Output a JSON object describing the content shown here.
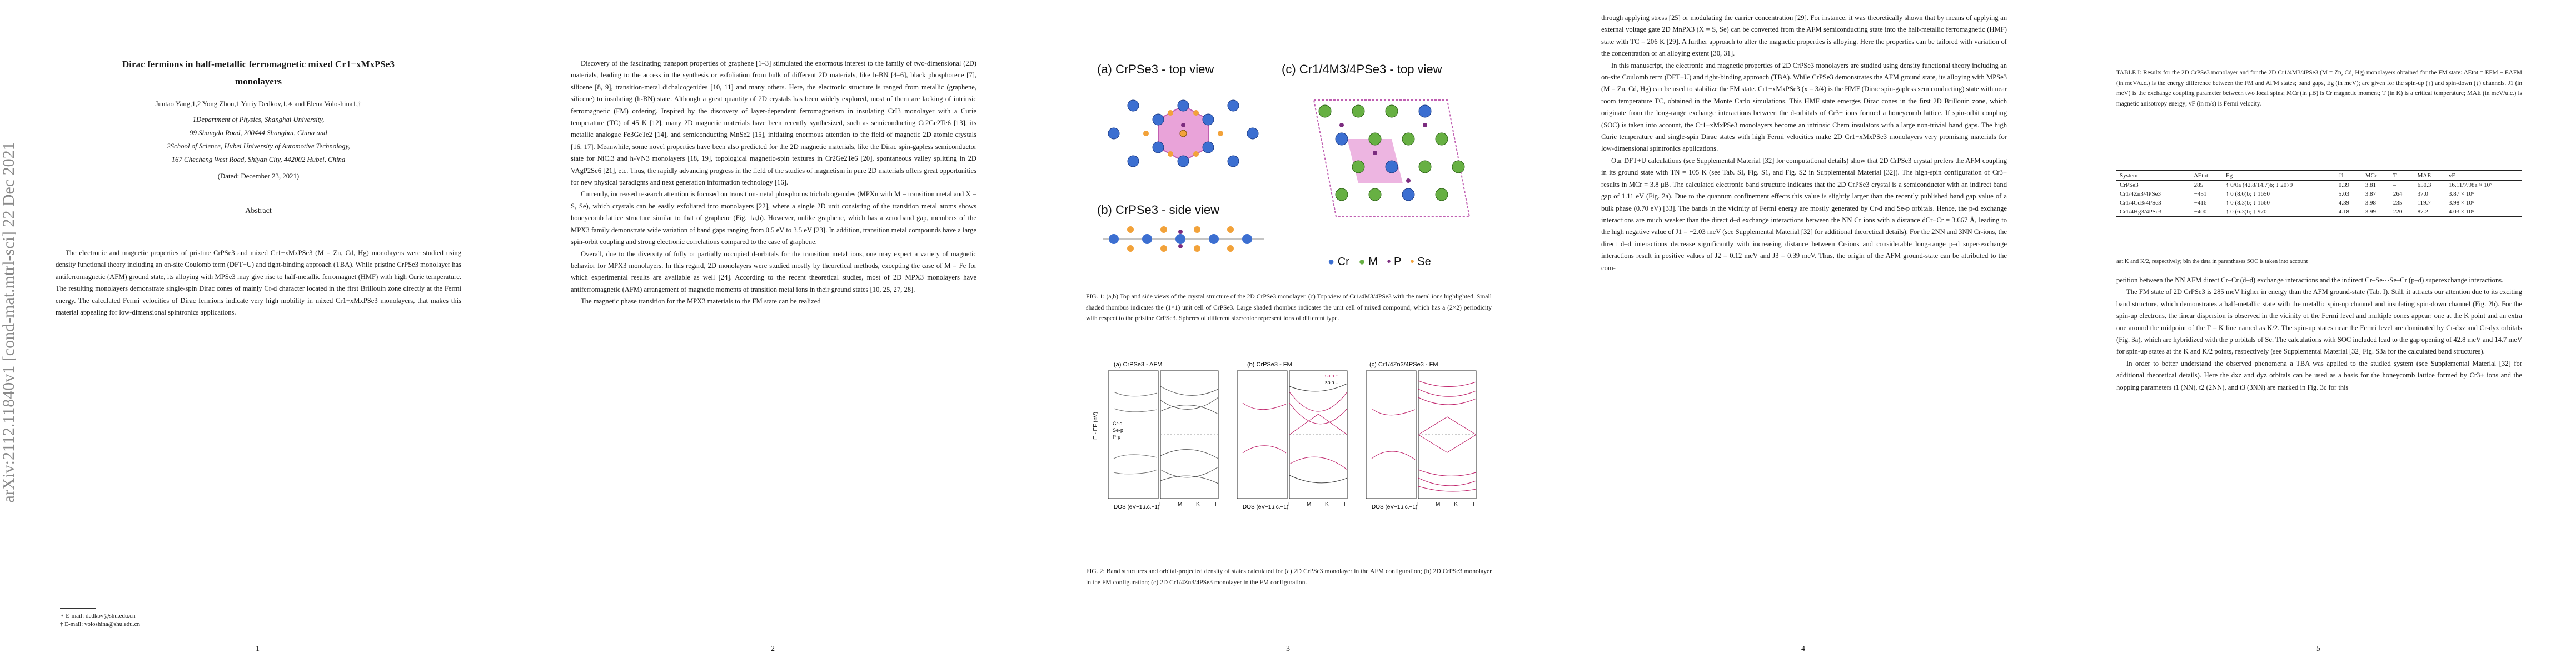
{
  "arxiv_stamp": "arXiv:2112.11840v1  [cond-mat.mtrl-sci]  22 Dec 2021",
  "page1": {
    "title_line1": "Dirac fermions in half-metallic ferromagnetic mixed Cr1−xMxPSe3",
    "title_line2": "monolayers",
    "authors": "Juntao Yang,1,2 Yong Zhou,1 Yuriy Dedkov,1,∗ and Elena Voloshina1,†",
    "affil1a": "1Department of Physics, Shanghai University,",
    "affil1b": "99 Shangda Road, 200444 Shanghai, China and",
    "affil2a": "2School of Science, Hubei University of Automotive Technology,",
    "affil2b": "167 Checheng West Road, Shiyan City, 442002 Hubei, China",
    "dated": "(Dated: December 23, 2021)",
    "abstract_heading": "Abstract",
    "abstract": "The electronic and magnetic properties of pristine CrPSe3 and mixed Cr1−xMxPSe3 (M = Zn, Cd, Hg) monolayers were studied using density functional theory including an on-site Coulomb term (DFT+U) and tight-binding approach (TBA). While pristine CrPSe3 monolayer has antiferromagnetic (AFM) ground state, its alloying with MPSe3 may give rise to half-metallic ferromagnet (HMF) with high Curie temperature. The resulting monolayers demonstrate single-spin Dirac cones of mainly Cr-d character located in the first Brillouin zone directly at the Fermi energy. The calculated Fermi velocities of Dirac fermions indicate very high mobility in mixed Cr1−xMxPSe3 monolayers, that makes this material appealing for low-dimensional spintronics applications.",
    "footnote1": "∗ E-mail: dedkov@shu.edu.cn",
    "footnote2": "† E-mail: voloshina@shu.edu.cn",
    "page_number": "1"
  },
  "page2": {
    "paragraphs": [
      "Discovery of the fascinating transport properties of graphene [1–3] stimulated the enormous interest to the family of two-dimensional (2D) materials, leading to the access in the synthesis or exfoliation from bulk of different 2D materials, like h-BN [4–6], black phosphorene [7], silicene [8, 9], transition-metal dichalcogenides [10, 11] and many others. Here, the electronic structure is ranged from metallic (graphene, silicene) to insulating (h-BN) state. Although a great quantity of 2D crystals has been widely explored, most of them are lacking of intrinsic ferromagnetic (FM) ordering. Inspired by the discovery of layer-dependent ferromagnetism in insulating CrI3 monolayer with a Curie temperature (TC) of 45 K [12], many 2D magnetic materials have been recently synthesized, such as semiconducting Cr2Ge2Te6 [13], its metallic analogue Fe3GeTe2 [14], and semiconducting MnSe2 [15], initiating enormous attention to the field of magnetic 2D atomic crystals [16, 17]. Meanwhile, some novel properties have been also predicted for the 2D magnetic materials, like the Dirac spin-gapless semiconductor state for NiCl3 and h-VN3 monolayers [18, 19], topological magnetic-spin textures in Cr2Ge2Te6 [20], spontaneous valley splitting in 2D VAgP2Se6 [21], etc. Thus, the rapidly advancing progress in the field of the studies of magnetism in pure 2D materials offers great opportunities for new physical paradigms and next generation information technology [16].",
      "Currently, increased research attention is focused on transition-metal phosphorus trichalcogenides (MPXn with M = transition metal and X = S, Se), which crystals can be easily exfoliated into monolayers [22], where a single 2D unit consisting of the transition metal atoms shows honeycomb lattice structure similar to that of graphene (Fig. 1a,b). However, unlike graphene, which has a zero band gap, members of the MPX3 family demonstrate wide variation of band gaps ranging from 0.5 eV to 3.5 eV [23]. In addition, transition metal compounds have a large spin-orbit coupling and strong electronic correlations compared to the case of graphene.",
      "Overall, due to the diversity of fully or partially occupied d-orbitals for the transition metal ions, one may expect a variety of magnetic behavior for MPX3 monolayers. In this regard, 2D monolayers were studied mostly by theoretical methods, excepting the case of M = Fe for which experimental results are available as well [24]. According to the recent theoretical studies, most of 2D MPX3 monolayers have antiferromagnetic (AFM) arrangement of magnetic moments of transition metal ions in their ground states [10, 25, 27, 28].",
      "The magnetic phase transition for the MPX3 materials to the FM state can be realized"
    ],
    "page_number": "2"
  },
  "page3": {
    "fig1_label_a": "(a) CrPSe3 - top view",
    "fig1_label_b": "(b) CrPSe3 - side view",
    "fig1_label_c": "(c) Cr1/4M3/4PSe3 - top view",
    "legend": [
      "Cr",
      "M",
      "P",
      "Se"
    ],
    "fig1_caption": "FIG. 1: (a,b) Top and side views of the crystal structure of the 2D CrPSe3 monolayer. (c) Top view of Cr1/4M3/4PSe3 with the metal ions highlighted. Small shaded rhombus indicates the (1×1) unit cell of CrPSe3. Large shaded rhombus indicates the unit cell of mixed compound, which has a (2×2) periodicity with respect to the pristine CrPSe3. Spheres of different size/color represent ions of different type.",
    "fig2_panel_a": "(a) CrPSe3 - AFM",
    "fig2_panel_b": "(b) CrPSe3 - FM",
    "fig2_panel_c": "(c) Cr1/4Zn3/4PSe3 - FM",
    "fig2_xlabel": "DOS (eV−1u.c.−1)",
    "fig2_ylabel": "E - EF (eV)",
    "fig2_kpath": [
      "Γ",
      "M",
      "K",
      "Γ"
    ],
    "fig2_legend": [
      "spin ↑",
      "spin ↓"
    ],
    "fig2_pdos_labels": [
      "Cr-d",
      "Se-p",
      "P-p"
    ],
    "fig2_caption": "FIG. 2: Band structures and orbital-projected density of states calculated for (a) 2D CrPSe3 monolayer in the AFM configuration; (b) 2D CrPSe3 monolayer in the FM configuration; (c) 2D Cr1/4Zn3/4PSe3 monolayer in the FM configuration.",
    "page_number": "3"
  },
  "page4": {
    "paragraphs": [
      "through applying stress [25] or modulating the carrier concentration [29]. For instance, it was theoretically shown that by means of applying an external voltage gate 2D MnPX3 (X = S, Se) can be converted from the AFM semiconducting state into the half-metallic ferromagnetic (HMF) state with TC = 206 K [29]. A further approach to alter the magnetic properties is alloying. Here the properties can be tailored with variation of the concentration of an alloying extent [30, 31].",
      "In this manuscript, the electronic and magnetic properties of 2D CrPSe3 monolayers are studied using density functional theory including an on-site Coulomb term (DFT+U) and tight-binding approach (TBA). While CrPSe3 demonstrates the AFM ground state, its alloying with MPSe3 (M = Zn, Cd, Hg) can be used to stabilize the FM state. Cr1−xMxPSe3 (x = 3/4) is the HMF (Dirac spin-gapless semiconducting) state with near room temperature TC, obtained in the Monte Carlo simulations. This HMF state emerges Dirac cones in the first 2D Brillouin zone, which originate from the long-range exchange interactions between the d-orbitals of Cr3+ ions formed a honeycomb lattice. If spin-orbit coupling (SOC) is taken into account, the Cr1−xMxPSe3 monolayers become an intrinsic Chern insulators with a large non-trivial band gaps. The high Curie temperature and single-spin Dirac states with high Fermi velocities make 2D Cr1−xMxPSe3 monolayers very promising materials for low-dimensional spintronics applications.",
      "Our DFT+U calculations (see Supplemental Material [32] for computational details) show that 2D CrPSe3 crystal prefers the AFM coupling in its ground state with TN = 105 K (see Tab. SI, Fig. S1, and Fig. S2 in Supplemental Material [32]). The high-spin configuration of Cr3+ results in MCr = 3.8 μB. The calculated electronic band structure indicates that the 2D CrPSe3 crystal is a semiconductor with an indirect band gap of 1.11 eV (Fig. 2a). Due to the quantum confinement effects this value is slightly larger than the recently published band gap value of a bulk phase (0.70 eV) [33]. The bands in the vicinity of Fermi energy are mostly generated by Cr-d and Se-p orbitals. Hence, the p-d exchange interactions are much weaker than the direct d–d exchange interactions between the NN Cr ions with a distance dCr−Cr = 3.667 Å, leading to the high negative value of J1 = −2.03 meV (see Supplemental Material [32] for additional theoretical details). For the 2NN and 3NN Cr-ions, the direct d–d interactions decrease significantly with increasing distance between Cr-ions and considerable long-range p–d super-exchange interactions result in positive values of J2 = 0.12 meV and J3 = 0.39 meV. Thus, the origin of the AFM ground-state can be attributed to the com-"
    ],
    "page_number": "4"
  },
  "page5": {
    "table_caption": "TABLE I: Results for the 2D CrPSe3 monolayer and for the 2D Cr1/4M3/4PSe3 (M = Zn, Cd, Hg) monolayers obtained for the FM state: ΔEtot = EFM − EAFM (in meV/u.c.) is the energy difference between the FM and AFM states; band gaps, Eg (in meV); are given for the spin-up (↑) and spin-down (↓) channels. J1 (in meV) is the exchange coupling parameter between two local spins; MCr (in μB) is Cr magnetic moment; T (in K) is a critical temperature; MAE (in meV/u.c.) is magnetic anisotropy energy; vF (in m/s) is Fermi velocity.",
    "table_headers": [
      "System",
      "ΔEtot",
      "Eg",
      "J1",
      "MCr",
      "T",
      "MAE",
      "vF"
    ],
    "table_rows": [
      [
        "CrPSe3",
        "285",
        "↑ 0/0a (42.8/14.7)b; ↓ 2079",
        "0.39",
        "3.81",
        "–",
        "650.3",
        "16.11/7.98a × 10⁵"
      ],
      [
        "Cr1/4Zn3/4PSe3",
        "−451",
        "↑ 0 (8.6)b; ↓ 1650",
        "5.03",
        "3.87",
        "264",
        "37.0",
        "3.87 × 10⁵"
      ],
      [
        "Cr1/4Cd3/4PSe3",
        "−416",
        "↑ 0 (8.3)b; ↓ 1660",
        "4.39",
        "3.98",
        "235",
        "119.7",
        "3.98 × 10⁵"
      ],
      [
        "Cr1/4Hg3/4PSe3",
        "−400",
        "↑ 0 (6.3)b; ↓ 970",
        "4.18",
        "3.99",
        "220",
        "87.2",
        "4.03 × 10⁵"
      ]
    ],
    "table_note": "aat K and K/2, respectively; bIn the data in parentheses SOC is taken into account",
    "paragraphs": [
      "petition between the NN AFM direct Cr–Cr (d–d) exchange interactions and the indirect Cr–Se⋯Se–Cr (p–d) superexchange interactions.",
      "The FM state of 2D CrPSe3 is 285 meV higher in energy than the AFM ground-state (Tab. I). Still, it attracts our attention due to its exciting band structure, which demonstrates a half-metallic state with the metallic spin-up channel and insulating spin-down channel (Fig. 2b). For the spin-up electrons, the linear dispersion is observed in the vicinity of the Fermi level and multiple cones appear: one at the K point and an extra one around the midpoint of the Γ – K line named as K/2. The spin-up states near the Fermi level are dominated by Cr-dxz and Cr-dyz orbitals (Fig. 3a), which are hybridized with the p orbitals of Se. The calculations with SOC included lead to the gap opening of 42.8 meV and 14.7 meV for spin-up states at the K and K/2 points, respectively (see Supplemental Material [32] Fig. S3a for the calculated band structures).",
      "In order to better understand the observed phenomena a TBA was applied to the studied system (see Supplemental Material [32] for additional theoretical details). Here the dxz and dyz orbitals can be used as a basis for the honeycomb lattice formed by Cr3+ ions and the hopping parameters t1 (NN), t2 (2NN), and t3 (3NN) are marked in Fig. 3c for this"
    ],
    "page_number": "5"
  }
}
